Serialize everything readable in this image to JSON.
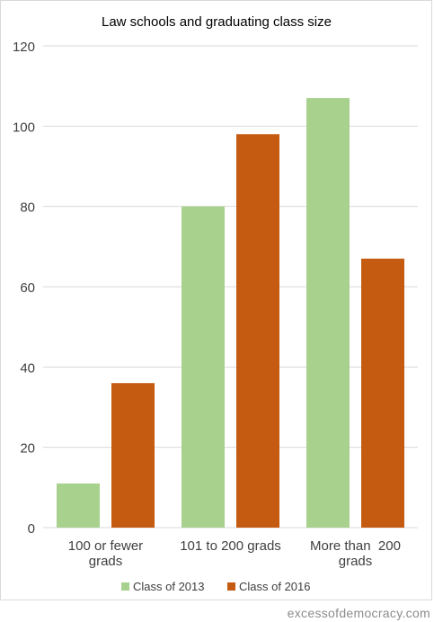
{
  "chart_data": {
    "type": "bar",
    "title": "Law schools and graduating class size",
    "xlabel": "",
    "ylabel": "",
    "categories": [
      [
        "100 or fewer",
        "grads"
      ],
      [
        "101 to 200 grads"
      ],
      [
        "More than  200",
        "grads"
      ]
    ],
    "series": [
      {
        "name": "Class of 2013",
        "color": "#a9d18e",
        "values": [
          11,
          80,
          107
        ]
      },
      {
        "name": "Class of 2016",
        "color": "#c55a11",
        "values": [
          36,
          98,
          67
        ]
      }
    ],
    "ylim": [
      0,
      120
    ],
    "yticks": [
      0,
      20,
      40,
      60,
      80,
      100,
      120
    ],
    "grid": true,
    "legend": "bottom"
  },
  "watermark": "excessofdemocracy.com",
  "colors": {
    "grid": "#d9d9d9",
    "text": "#404040"
  }
}
